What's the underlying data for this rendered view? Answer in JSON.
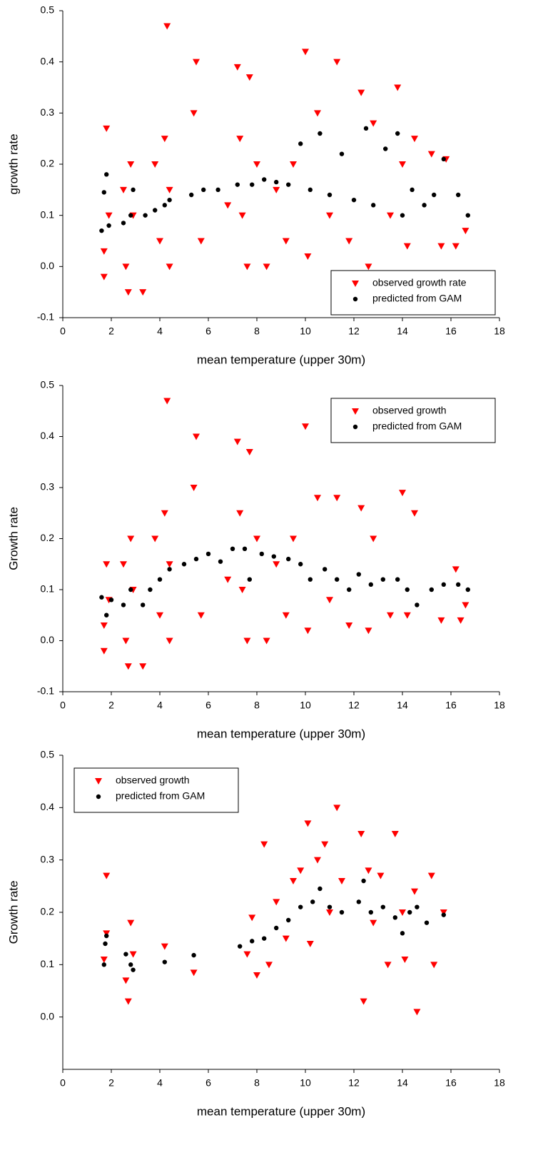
{
  "chart_data": [
    {
      "type": "scatter",
      "xlabel": "mean temperature (upper 30m)",
      "ylabel": "growth rate",
      "xlim": [
        0,
        18
      ],
      "xticks": [
        0,
        2,
        4,
        6,
        8,
        10,
        12,
        14,
        16,
        18
      ],
      "ylim": [
        -0.1,
        0.5
      ],
      "yticks": [
        -0.1,
        {
          "value": 0,
          "label": "0.0"
        },
        0.1,
        0.2,
        0.3,
        0.4,
        0.5
      ],
      "legend": "lower right",
      "series": [
        {
          "name": "observed growth rate",
          "color": "#ff0000",
          "marker": "triangle-down",
          "x": [
            1.7,
            1.8,
            1.9,
            1.7,
            2.5,
            2.6,
            2.7,
            2.8,
            2.9,
            3.3,
            3.8,
            4.0,
            4.2,
            4.3,
            4.4,
            4.4,
            5.4,
            5.5,
            5.7,
            6.8,
            7.2,
            7.3,
            7.4,
            7.6,
            7.7,
            8.0,
            8.4,
            8.8,
            9.2,
            9.5,
            10.0,
            10.1,
            10.5,
            11.0,
            11.3,
            11.8,
            12.3,
            12.6,
            12.8,
            13.5,
            13.8,
            14.0,
            14.2,
            14.5,
            15.2,
            15.6,
            15.8,
            16.2,
            16.6
          ],
          "values": [
            0.03,
            0.27,
            0.1,
            -0.02,
            0.15,
            0.0,
            -0.05,
            0.2,
            0.1,
            -0.05,
            0.2,
            0.05,
            0.25,
            0.47,
            0.0,
            0.15,
            0.3,
            0.4,
            0.05,
            0.12,
            0.39,
            0.25,
            0.1,
            0.0,
            0.37,
            0.2,
            0.0,
            0.15,
            0.05,
            0.2,
            0.42,
            0.02,
            0.3,
            0.1,
            0.4,
            0.05,
            0.34,
            0.0,
            0.28,
            0.1,
            0.35,
            0.2,
            0.04,
            0.25,
            0.22,
            0.04,
            0.21,
            0.04,
            0.07
          ]
        },
        {
          "name": "predicted from GAM",
          "color": "#000000",
          "marker": "circle",
          "x": [
            1.6,
            1.7,
            1.8,
            1.9,
            2.5,
            2.8,
            2.9,
            3.4,
            3.8,
            4.2,
            4.4,
            5.3,
            5.8,
            6.4,
            7.2,
            7.8,
            8.3,
            8.8,
            9.3,
            9.8,
            10.2,
            10.6,
            11.0,
            11.5,
            12.0,
            12.5,
            12.8,
            13.3,
            13.8,
            14.0,
            14.4,
            14.9,
            15.3,
            15.7,
            16.3,
            16.7
          ],
          "values": [
            0.07,
            0.145,
            0.18,
            0.08,
            0.085,
            0.1,
            0.15,
            0.1,
            0.11,
            0.12,
            0.13,
            0.14,
            0.15,
            0.15,
            0.16,
            0.16,
            0.17,
            0.165,
            0.16,
            0.24,
            0.15,
            0.26,
            0.14,
            0.22,
            0.13,
            0.27,
            0.12,
            0.23,
            0.26,
            0.1,
            0.15,
            0.12,
            0.14,
            0.21,
            0.14,
            0.1
          ]
        }
      ]
    },
    {
      "type": "scatter",
      "xlabel": "mean temperature (upper 30m)",
      "ylabel": "Growth rate",
      "xlim": [
        0,
        18
      ],
      "xticks": [
        0,
        2,
        4,
        6,
        8,
        10,
        12,
        14,
        16,
        18
      ],
      "ylim": [
        -0.1,
        0.5
      ],
      "yticks": [
        -0.1,
        {
          "value": 0,
          "label": "0.0"
        },
        0.1,
        0.2,
        0.3,
        0.4,
        0.5
      ],
      "legend": "upper right",
      "series": [
        {
          "name": "observed growth",
          "color": "#ff0000",
          "marker": "triangle-down",
          "x": [
            1.7,
            1.8,
            1.9,
            1.7,
            2.5,
            2.6,
            2.7,
            2.8,
            2.9,
            3.3,
            3.8,
            4.0,
            4.2,
            4.3,
            4.4,
            4.4,
            5.4,
            5.5,
            5.7,
            6.8,
            7.2,
            7.3,
            7.4,
            7.6,
            7.7,
            8.0,
            8.4,
            8.8,
            9.2,
            9.5,
            10.0,
            10.1,
            10.5,
            11.0,
            11.3,
            11.8,
            12.3,
            12.6,
            12.8,
            13.5,
            14.0,
            14.2,
            14.5,
            15.6,
            16.2,
            16.4,
            16.6
          ],
          "values": [
            0.03,
            0.15,
            0.08,
            -0.02,
            0.15,
            0.0,
            -0.05,
            0.2,
            0.1,
            -0.05,
            0.2,
            0.05,
            0.25,
            0.47,
            0.0,
            0.15,
            0.3,
            0.4,
            0.05,
            0.12,
            0.39,
            0.25,
            0.1,
            0.0,
            0.37,
            0.2,
            0.0,
            0.15,
            0.05,
            0.2,
            0.42,
            0.02,
            0.28,
            0.08,
            0.28,
            0.03,
            0.26,
            0.02,
            0.2,
            0.05,
            0.29,
            0.05,
            0.25,
            0.04,
            0.14,
            0.04,
            0.07
          ]
        },
        {
          "name": "predicted from GAM",
          "color": "#000000",
          "marker": "circle",
          "x": [
            1.6,
            1.8,
            2.0,
            2.5,
            2.8,
            3.3,
            3.6,
            4.0,
            4.4,
            5.0,
            5.5,
            6.0,
            6.5,
            7.0,
            7.5,
            7.7,
            8.2,
            8.7,
            9.3,
            9.8,
            10.2,
            10.8,
            11.3,
            11.8,
            12.2,
            12.7,
            13.2,
            13.8,
            14.2,
            14.6,
            15.2,
            15.7,
            16.3,
            16.7
          ],
          "values": [
            0.085,
            0.05,
            0.08,
            0.07,
            0.1,
            0.07,
            0.1,
            0.12,
            0.14,
            0.15,
            0.16,
            0.17,
            0.155,
            0.18,
            0.18,
            0.12,
            0.17,
            0.165,
            0.16,
            0.15,
            0.12,
            0.14,
            0.12,
            0.1,
            0.13,
            0.11,
            0.12,
            0.12,
            0.1,
            0.07,
            0.1,
            0.11,
            0.11,
            0.1
          ]
        }
      ]
    },
    {
      "type": "scatter",
      "xlabel": "mean temperature (upper 30m)",
      "ylabel": "Growth rate",
      "xlim": [
        0,
        18
      ],
      "xticks": [
        0,
        2,
        4,
        6,
        8,
        10,
        12,
        14,
        16,
        18
      ],
      "ylim": [
        -0.1,
        0.5
      ],
      "yticks": [
        {
          "value": 0,
          "label": "0.0"
        },
        0.1,
        0.2,
        0.3,
        0.4,
        0.5
      ],
      "legend": "upper left",
      "series": [
        {
          "name": "observed growth",
          "color": "#ff0000",
          "marker": "triangle-down",
          "x": [
            1.7,
            1.8,
            1.8,
            2.6,
            2.7,
            2.8,
            2.9,
            4.2,
            5.4,
            7.6,
            7.8,
            8.0,
            8.3,
            8.5,
            8.8,
            9.2,
            9.5,
            9.8,
            10.1,
            10.2,
            10.5,
            10.8,
            11.0,
            11.3,
            11.5,
            12.3,
            12.4,
            12.6,
            12.8,
            13.1,
            13.4,
            13.7,
            14.0,
            14.1,
            14.5,
            14.6,
            15.2,
            15.3,
            15.7
          ],
          "values": [
            0.11,
            0.27,
            0.16,
            0.07,
            0.03,
            0.18,
            0.12,
            0.135,
            0.085,
            0.12,
            0.19,
            0.08,
            0.33,
            0.1,
            0.22,
            0.15,
            0.26,
            0.28,
            0.37,
            0.14,
            0.3,
            0.33,
            0.2,
            0.4,
            0.26,
            0.35,
            0.03,
            0.28,
            0.18,
            0.27,
            0.1,
            0.35,
            0.2,
            0.11,
            0.24,
            0.01,
            0.27,
            0.1,
            0.2
          ]
        },
        {
          "name": "predicted from GAM",
          "color": "#000000",
          "marker": "circle",
          "x": [
            1.7,
            1.8,
            1.75,
            2.6,
            2.8,
            2.9,
            4.2,
            5.4,
            7.3,
            7.8,
            8.3,
            8.8,
            9.3,
            9.8,
            10.3,
            10.6,
            11.0,
            11.5,
            12.2,
            12.4,
            12.7,
            13.2,
            13.7,
            14.0,
            14.3,
            14.6,
            15.0,
            15.7
          ],
          "values": [
            0.1,
            0.155,
            0.14,
            0.12,
            0.1,
            0.09,
            0.105,
            0.118,
            0.135,
            0.145,
            0.15,
            0.17,
            0.185,
            0.21,
            0.22,
            0.245,
            0.21,
            0.2,
            0.22,
            0.26,
            0.2,
            0.21,
            0.19,
            0.16,
            0.2,
            0.21,
            0.18,
            0.195
          ]
        }
      ]
    }
  ]
}
